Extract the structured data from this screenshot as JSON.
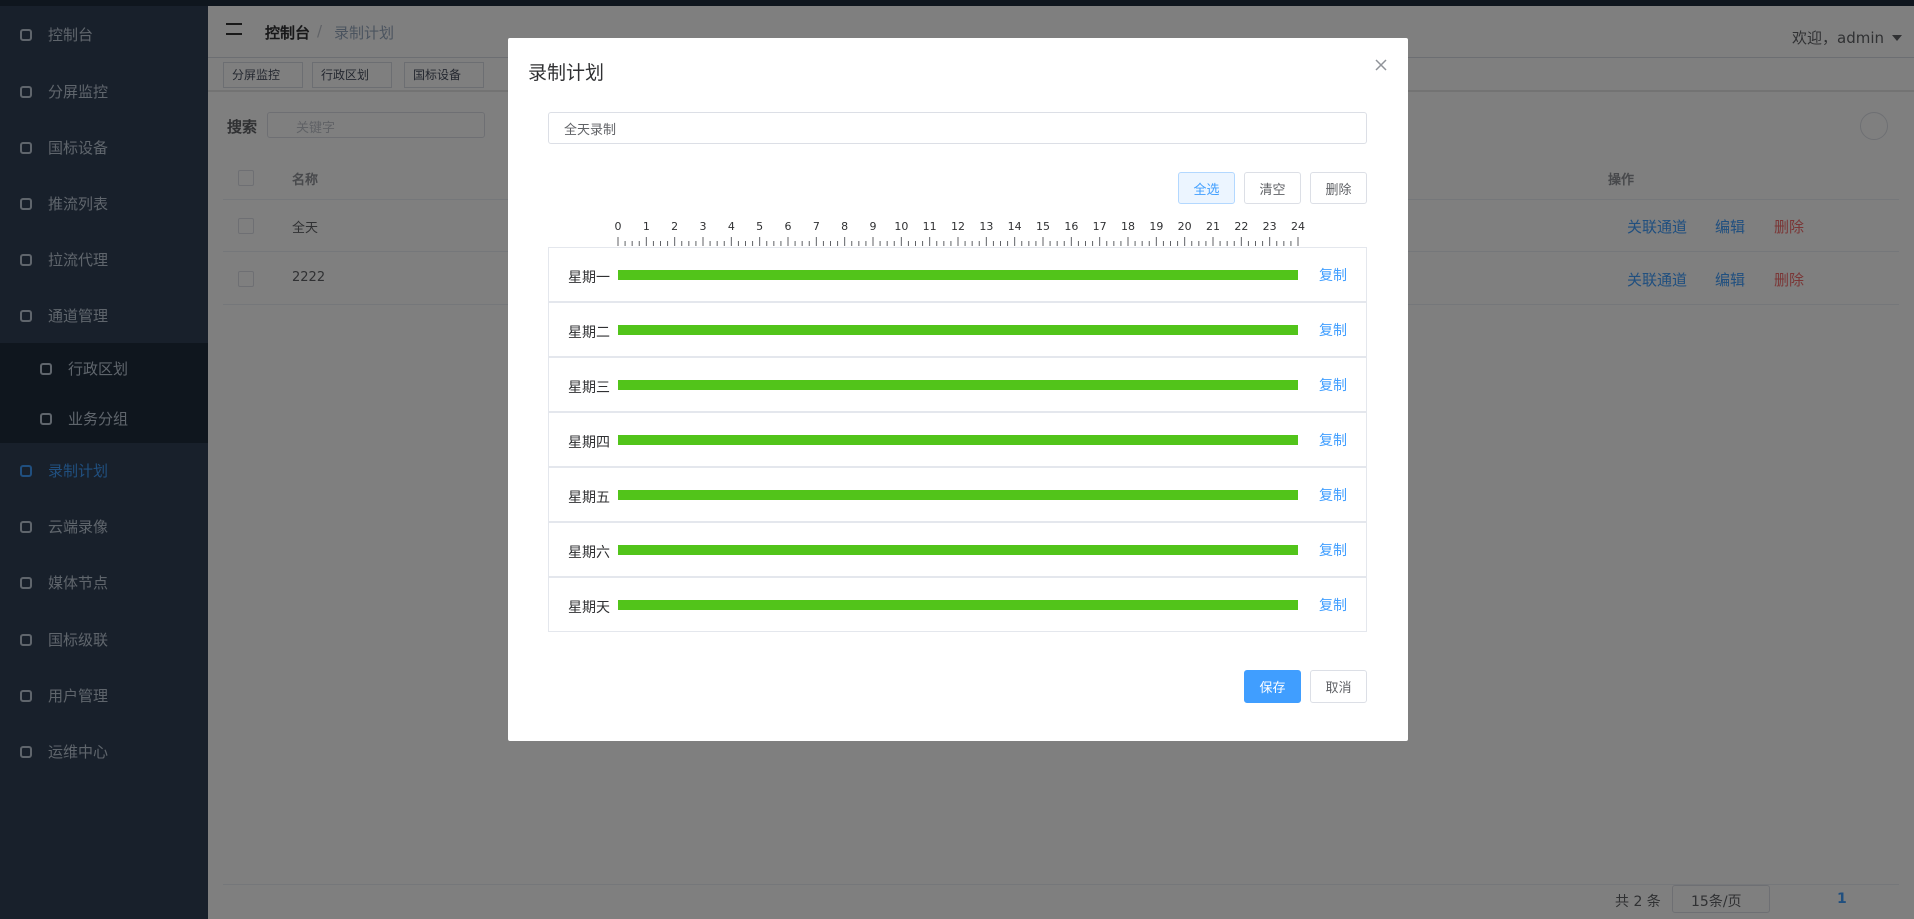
{
  "sidebar": {
    "items": [
      "控制台",
      "分屏监控",
      "国标设备",
      "推流列表",
      "拉流代理",
      "通道管理",
      "行政区划",
      "业务分组",
      "录制计划",
      "云端录像",
      "媒体节点",
      "国标级联",
      "用户管理",
      "运维中心"
    ]
  },
  "header": {
    "breadcrumb": [
      "控制台",
      "录制计划"
    ],
    "separator": "/",
    "user": "欢迎，admin"
  },
  "tags": [
    "分屏监控",
    "行政区划",
    "国标设备"
  ],
  "search": {
    "label": "搜索",
    "placeholder": "关键字"
  },
  "table": {
    "columns": [
      "名称",
      "操作"
    ],
    "rows": [
      [
        "全天"
      ],
      [
        "2222"
      ]
    ],
    "actions": [
      "关联通道",
      "编辑",
      "删除"
    ]
  },
  "pagination": {
    "total": "共 2 条",
    "page_size": "15条/页",
    "page": "1"
  },
  "modal": {
    "title": "录制计划",
    "name_value": "全天录制",
    "buttons": [
      "全选",
      "清空",
      "删除"
    ],
    "axis_ticks": [
      0,
      1,
      2,
      3,
      4,
      5,
      6,
      7,
      8,
      9,
      10,
      11,
      12,
      13,
      14,
      15,
      16,
      17,
      18,
      19,
      20,
      21,
      22,
      23,
      24
    ],
    "days": [
      {
        "label": "星期一",
        "start": 0,
        "end": 24
      },
      {
        "label": "星期二",
        "start": 0,
        "end": 24
      },
      {
        "label": "星期三",
        "start": 0,
        "end": 24
      },
      {
        "label": "星期四",
        "start": 0,
        "end": 24
      },
      {
        "label": "星期五",
        "start": 0,
        "end": 24
      },
      {
        "label": "星期六",
        "start": 0,
        "end": 24
      },
      {
        "label": "星期天",
        "start": 0,
        "end": 24
      }
    ],
    "copy_label": "复制",
    "footer": [
      "保存",
      "取消"
    ]
  }
}
